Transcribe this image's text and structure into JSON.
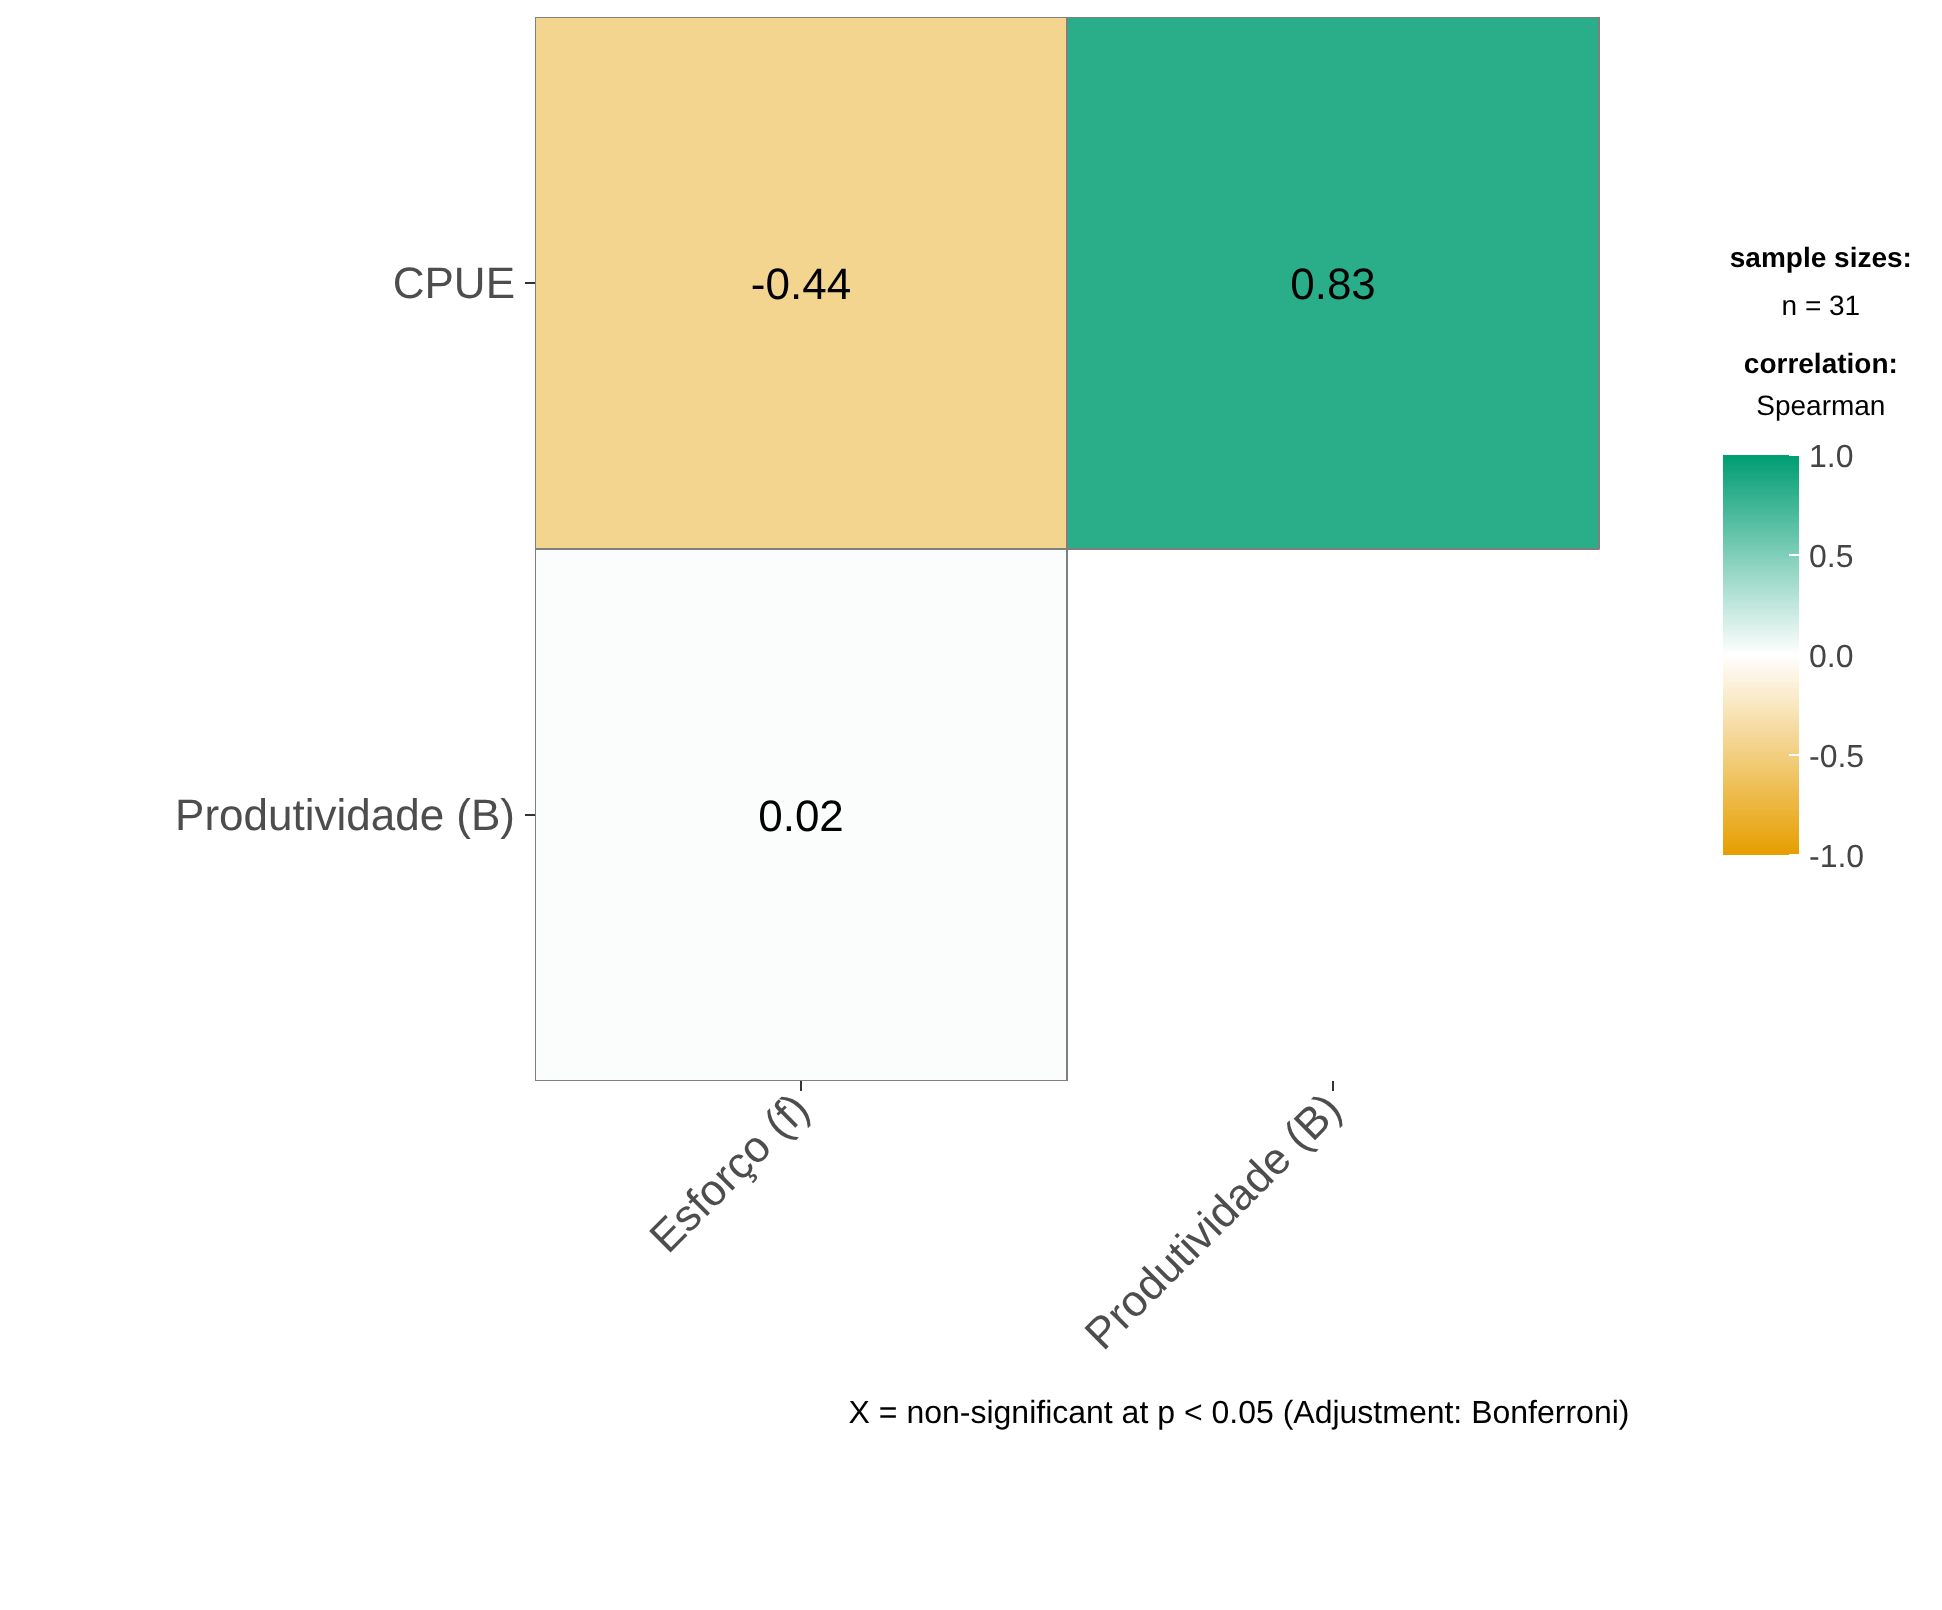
{
  "chart_data": {
    "type": "heatmap",
    "categories": [
      "Esforço (f)",
      "Produtividade (B)"
    ],
    "y_categories": [
      "CPUE",
      "Produtividade (B)"
    ],
    "cells": [
      [
        -0.44,
        0.83
      ],
      [
        0.02,
        null
      ]
    ],
    "data_labels": true,
    "clim": [
      -1,
      1
    ],
    "cticks": [
      {
        "value": -1,
        "label": "-1.0"
      },
      {
        "value": -0.5,
        "label": "-0.5"
      },
      {
        "value": 0,
        "label": "0.0"
      },
      {
        "value": 0.5,
        "label": "0.5"
      },
      {
        "value": 1,
        "label": "1.0"
      }
    ],
    "annotations": [
      "sample sizes:",
      "n = 31",
      "correlation:",
      "Spearman",
      "X = non-significant at p < 0.05 (Adjustment: Bonferroni)"
    ],
    "grid": false
  }
}
